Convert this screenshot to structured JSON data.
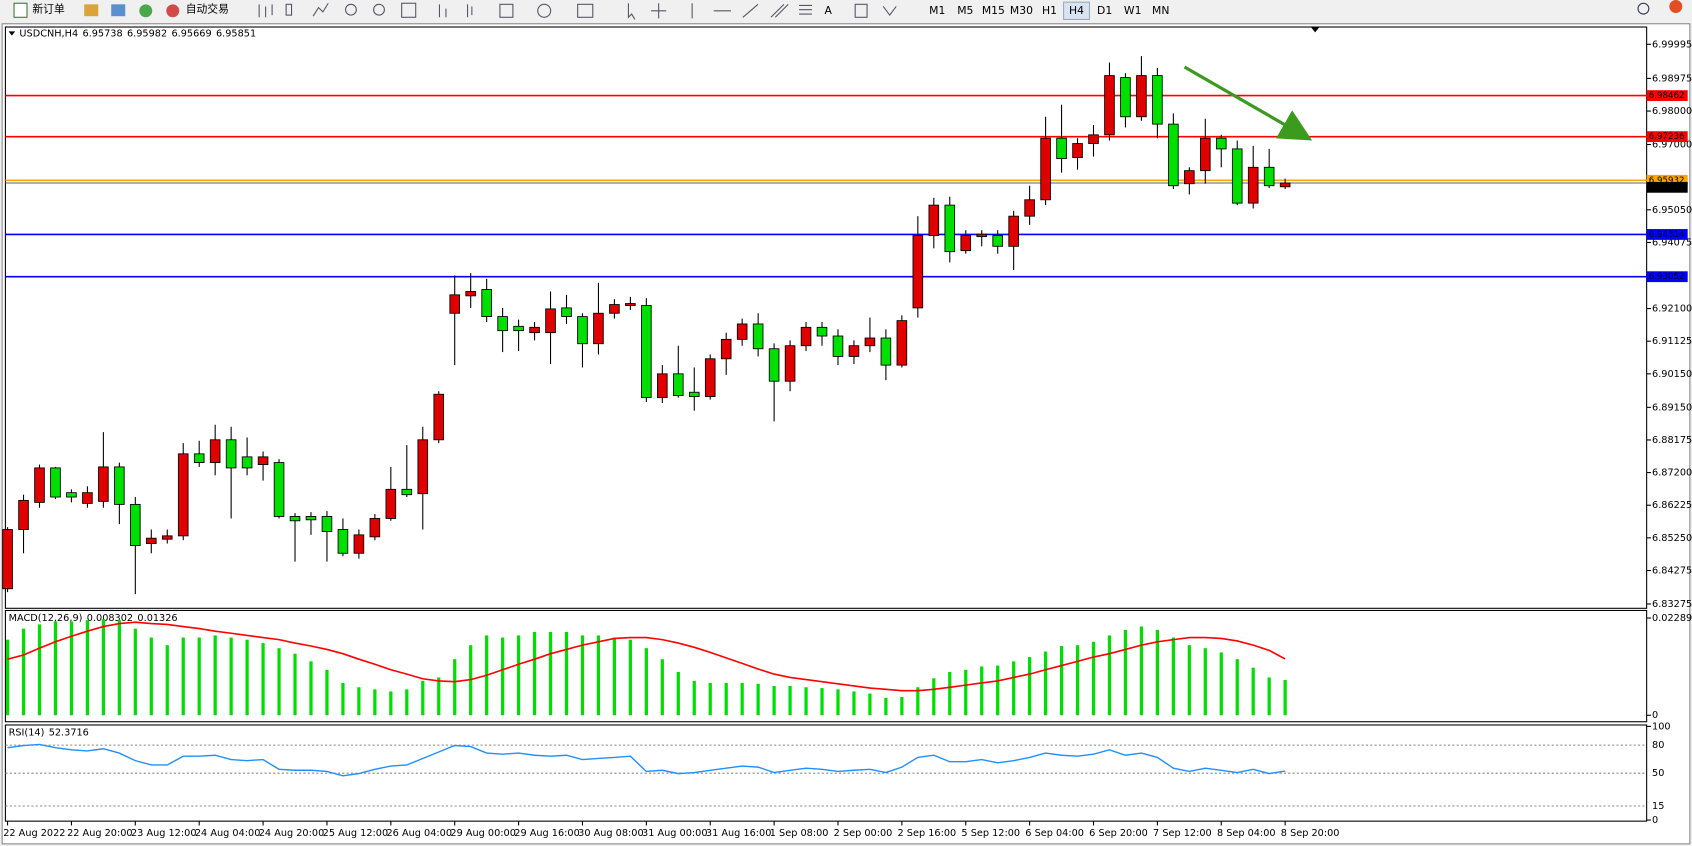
{
  "toolbar": {
    "new_order": "新订单",
    "auto_trading": "自动交易",
    "timeframes": [
      "M1",
      "M5",
      "M15",
      "M30",
      "H1",
      "H4",
      "D1",
      "W1",
      "MN"
    ]
  },
  "chart_data": [
    {
      "type": "candlestick",
      "title": "USDCNH,H4",
      "categories": [
        "22 Aug 2022",
        null,
        null,
        null,
        "22 Aug 20:00",
        null,
        null,
        null,
        "23 Aug 12:00",
        null,
        null,
        null,
        "24 Aug 04:00",
        null,
        null,
        null,
        "24 Aug 20:00",
        null,
        null,
        null,
        "25 Aug 12:00",
        null,
        null,
        null,
        "26 Aug 04:00",
        null,
        null,
        null,
        "29 Aug 00:00",
        null,
        null,
        null,
        "29 Aug 16:00",
        null,
        null,
        null,
        "30 Aug 08:00",
        null,
        null,
        null,
        "31 Aug 00:00",
        null,
        null,
        null,
        "31 Aug 16:00",
        null,
        null,
        null,
        "1 Sep 08:00",
        null,
        null,
        null,
        "2 Sep 00:00",
        null,
        null,
        null,
        "2 Sep 16:00",
        null,
        null,
        null,
        "5 Sep 12:00",
        null,
        null,
        null,
        "6 Sep 04:00",
        null,
        null,
        null,
        "6 Sep 20:00",
        null,
        null,
        null,
        "7 Sep 12:00",
        null,
        null,
        null,
        "8 Sep 04:00",
        null,
        null,
        null,
        "8 Sep 20:00"
      ],
      "open": [
        6.8373,
        6.855,
        6.8631,
        6.8734,
        6.866,
        6.8628,
        6.8634,
        6.8737,
        6.8625,
        6.8508,
        6.8521,
        6.8531,
        6.8776,
        6.875,
        6.8818,
        6.8767,
        6.8744,
        6.875,
        6.8589,
        6.8589,
        6.8589,
        6.855,
        6.8479,
        6.8528,
        6.8583,
        6.867,
        6.8657,
        6.8818,
        6.9196,
        6.9248,
        6.9267,
        6.9186,
        6.9157,
        6.9138,
        6.9138,
        6.9212,
        6.9186,
        6.9105,
        6.9196,
        6.9219,
        6.9219,
        6.8944,
        6.9015,
        6.896,
        6.8947,
        6.906,
        6.9118,
        6.9164,
        6.909,
        6.8993,
        6.9099,
        6.9154,
        6.9128,
        6.9067,
        6.9099,
        6.9122,
        6.9041,
        6.9212,
        6.9428,
        6.9519,
        6.9383,
        6.9425,
        6.9428,
        6.9396,
        6.9486,
        6.9535,
        6.9719,
        6.9661,
        6.9703,
        6.9729,
        6.99,
        6.9783,
        6.9906,
        6.9761,
        6.9583,
        6.9622,
        6.9719,
        6.9687,
        6.9525,
        6.9632,
        6.95738
      ],
      "high": [
        6.8557,
        6.8654,
        6.8744,
        6.8737,
        6.867,
        6.8679,
        6.8841,
        6.875,
        6.8647,
        6.855,
        6.855,
        6.8808,
        6.8815,
        6.8863,
        6.8857,
        6.8825,
        6.8783,
        6.876,
        6.8599,
        6.8602,
        6.8605,
        6.8583,
        6.855,
        6.8596,
        6.8737,
        6.8802,
        6.8857,
        6.8963,
        6.9309,
        6.9316,
        6.9299,
        6.9212,
        6.9177,
        6.917,
        6.9261,
        6.9251,
        6.9196,
        6.9287,
        6.9238,
        6.9245,
        6.9241,
        6.9041,
        6.9099,
        6.9034,
        6.9073,
        6.9138,
        6.918,
        6.9196,
        6.9106,
        6.9115,
        6.917,
        6.917,
        6.9148,
        6.9115,
        6.9183,
        6.9148,
        6.919,
        6.9486,
        6.9541,
        6.9544,
        6.9444,
        6.9444,
        6.9444,
        6.9502,
        6.9577,
        6.9783,
        6.9819,
        6.9719,
        6.9758,
        6.9945,
        6.9913,
        6.9964,
        6.9929,
        6.9793,
        6.9632,
        6.9777,
        6.9729,
        6.9712,
        6.9696,
        6.9687,
        6.95982
      ],
      "low": [
        6.8363,
        6.8479,
        6.8615,
        6.8641,
        6.8631,
        6.8615,
        6.8615,
        6.8566,
        6.8357,
        6.8479,
        6.8508,
        6.8518,
        6.8737,
        6.8712,
        6.8583,
        6.8712,
        6.8696,
        6.8583,
        6.8454,
        6.8534,
        6.8454,
        6.847,
        6.8463,
        6.8518,
        6.8576,
        6.8647,
        6.855,
        6.8808,
        6.9041,
        6.9212,
        6.917,
        6.908,
        6.9083,
        6.9115,
        6.9044,
        6.9164,
        6.9034,
        6.9073,
        6.918,
        6.9206,
        6.8931,
        6.8928,
        6.8944,
        6.8905,
        6.8938,
        6.9012,
        6.9099,
        6.9067,
        6.8873,
        6.8963,
        6.9083,
        6.9099,
        6.9041,
        6.9044,
        6.908,
        6.8996,
        6.9034,
        6.9183,
        6.939,
        6.9348,
        6.9374,
        6.9396,
        6.9374,
        6.9325,
        6.946,
        6.9519,
        6.9616,
        6.9625,
        6.9664,
        6.9712,
        6.9751,
        6.9771,
        6.9719,
        6.9567,
        6.9551,
        6.9583,
        6.9632,
        6.9519,
        6.9509,
        6.957,
        6.95669
      ],
      "close": [
        6.855,
        6.8637,
        6.8734,
        6.8647,
        6.8647,
        6.866,
        6.8737,
        6.8625,
        6.8502,
        6.8524,
        6.8531,
        6.8776,
        6.875,
        6.8818,
        6.8734,
        6.8734,
        6.8767,
        6.8589,
        6.8576,
        6.8579,
        6.8544,
        6.8479,
        6.8534,
        6.8583,
        6.867,
        6.8654,
        6.8818,
        6.8954,
        6.9251,
        6.9261,
        6.9186,
        6.9144,
        6.9144,
        6.9154,
        6.9209,
        6.9186,
        6.9105,
        6.9196,
        6.9222,
        6.9225,
        6.8944,
        6.9015,
        6.895,
        6.8947,
        6.906,
        6.9118,
        6.9164,
        6.909,
        6.8993,
        6.9099,
        6.9154,
        6.9128,
        6.9067,
        6.9099,
        6.9122,
        6.9041,
        6.9174,
        6.9428,
        6.9519,
        6.938,
        6.9428,
        6.9432,
        6.9396,
        6.9486,
        6.9535,
        6.9719,
        6.9658,
        6.9703,
        6.9729,
        6.9906,
        6.9783,
        6.9906,
        6.9761,
        6.9577,
        6.9622,
        6.9719,
        6.9687,
        6.9525,
        6.9632,
        6.9577,
        6.95851
      ],
      "up_color": "#e00000",
      "down_color": "#00e000",
      "ylim": [
        6.83146,
        7.00511
      ],
      "yticks": [
        {
          "value": 6.99995,
          "label": "6.99995"
        },
        {
          "value": 6.98975,
          "label": "6.98975"
        },
        {
          "value": 6.98,
          "label": "6.98000"
        },
        {
          "value": 6.97,
          "label": "6.97000"
        },
        {
          "value": 6.9505,
          "label": "6.95050"
        },
        {
          "value": 6.94075,
          "label": "6.94075"
        },
        {
          "value": 6.921,
          "label": "6.92100"
        },
        {
          "value": 6.91125,
          "label": "6.91125"
        },
        {
          "value": 6.9015,
          "label": "6.90150"
        },
        {
          "value": 6.8915,
          "label": "6.89150"
        },
        {
          "value": 6.88175,
          "label": "6.88175"
        },
        {
          "value": 6.872,
          "label": "6.87200"
        },
        {
          "value": 6.86225,
          "label": "6.86225"
        },
        {
          "value": 6.8525,
          "label": "6.85250"
        },
        {
          "value": 6.84275,
          "label": "6.84275"
        },
        {
          "value": 6.83275,
          "label": "6.83275"
        }
      ],
      "hlines": [
        {
          "value": 6.98462,
          "color": "#ff0000"
        },
        {
          "value": 6.97236,
          "color": "#ff0000"
        },
        {
          "value": 6.95932,
          "color": "#ffa500"
        },
        {
          "value": 6.94314,
          "color": "#0000ff"
        },
        {
          "value": 6.93052,
          "color": "#0000ff"
        }
      ]
    },
    {
      "type": "macd",
      "title": "MACD(12,26,9)",
      "histogram": {
        "color": "#00e000",
        "values": [
          0.0178,
          0.0204,
          0.0214,
          0.0221,
          0.0221,
          0.0224,
          0.0226,
          0.0224,
          0.0204,
          0.0183,
          0.0165,
          0.0183,
          0.0183,
          0.0188,
          0.0183,
          0.0178,
          0.017,
          0.0158,
          0.0145,
          0.0127,
          0.0107,
          0.0076,
          0.0066,
          0.0061,
          0.0056,
          0.0061,
          0.0081,
          0.0089,
          0.0132,
          0.0165,
          0.0188,
          0.0183,
          0.0188,
          0.0196,
          0.0196,
          0.0196,
          0.0188,
          0.0188,
          0.0183,
          0.0178,
          0.0158,
          0.0132,
          0.0102,
          0.0081,
          0.0076,
          0.0076,
          0.0076,
          0.0074,
          0.0069,
          0.0069,
          0.0066,
          0.0064,
          0.0061,
          0.0056,
          0.0051,
          0.0041,
          0.0043,
          0.0066,
          0.0087,
          0.0102,
          0.0107,
          0.0115,
          0.0117,
          0.0127,
          0.0137,
          0.015,
          0.0163,
          0.0165,
          0.0173,
          0.0188,
          0.0201,
          0.0209,
          0.0201,
          0.0183,
          0.0165,
          0.0158,
          0.0148,
          0.0132,
          0.0112,
          0.0089,
          0.008302
        ]
      },
      "signal": {
        "color": "#ff0000",
        "values": [
          0.0132,
          0.0142,
          0.0158,
          0.0173,
          0.0186,
          0.0198,
          0.0209,
          0.0216,
          0.0219,
          0.0216,
          0.0214,
          0.0209,
          0.0204,
          0.0198,
          0.0193,
          0.0188,
          0.0183,
          0.0178,
          0.017,
          0.0163,
          0.0155,
          0.0145,
          0.0132,
          0.012,
          0.0107,
          0.0097,
          0.0086,
          0.0081,
          0.0079,
          0.0084,
          0.0094,
          0.0107,
          0.012,
          0.0132,
          0.0145,
          0.0155,
          0.0165,
          0.0173,
          0.0181,
          0.0183,
          0.0183,
          0.0178,
          0.017,
          0.016,
          0.0148,
          0.0135,
          0.0122,
          0.0109,
          0.0097,
          0.0089,
          0.0084,
          0.0079,
          0.0074,
          0.0069,
          0.0064,
          0.0061,
          0.0058,
          0.0058,
          0.0061,
          0.0066,
          0.0071,
          0.0076,
          0.0081,
          0.0089,
          0.0097,
          0.0107,
          0.0117,
          0.0127,
          0.0137,
          0.0145,
          0.0155,
          0.0165,
          0.0173,
          0.0178,
          0.0183,
          0.0183,
          0.0181,
          0.0175,
          0.0165,
          0.0153,
          0.01326
        ]
      },
      "ylim": [
        -0.00153,
        0.02468
      ],
      "yticks": [
        0.022895,
        0
      ]
    },
    {
      "type": "line",
      "title": "RSI(14)",
      "color": "#1e90ff",
      "values": [
        77.3,
        79.6,
        80.7,
        77.3,
        75.0,
        73.8,
        76.1,
        71.5,
        63.4,
        58.8,
        58.8,
        68.1,
        68.1,
        69.2,
        64.6,
        63.4,
        64.6,
        54.2,
        53.1,
        53.1,
        51.9,
        47.3,
        49.6,
        54.2,
        57.7,
        58.8,
        65.7,
        72.7,
        79.6,
        78.4,
        71.5,
        70.4,
        71.5,
        69.2,
        68.1,
        69.2,
        64.6,
        65.7,
        66.9,
        68.1,
        51.9,
        53.1,
        49.6,
        50.7,
        53.1,
        55.4,
        57.7,
        56.5,
        50.7,
        53.1,
        55.4,
        54.2,
        51.9,
        53.1,
        54.2,
        50.7,
        56.5,
        66.9,
        69.2,
        62.3,
        62.3,
        64.6,
        61.1,
        63.4,
        66.9,
        71.5,
        69.2,
        68.1,
        70.4,
        75.0,
        69.2,
        71.5,
        66.9,
        55.4,
        51.9,
        55.4,
        53.1,
        50.7,
        54.2,
        49.6,
        52.3716
      ],
      "ylim": [
        -1.2,
        101.5
      ],
      "yticks": [
        100,
        0
      ],
      "levels": [
        80,
        50,
        15
      ]
    }
  ]
}
